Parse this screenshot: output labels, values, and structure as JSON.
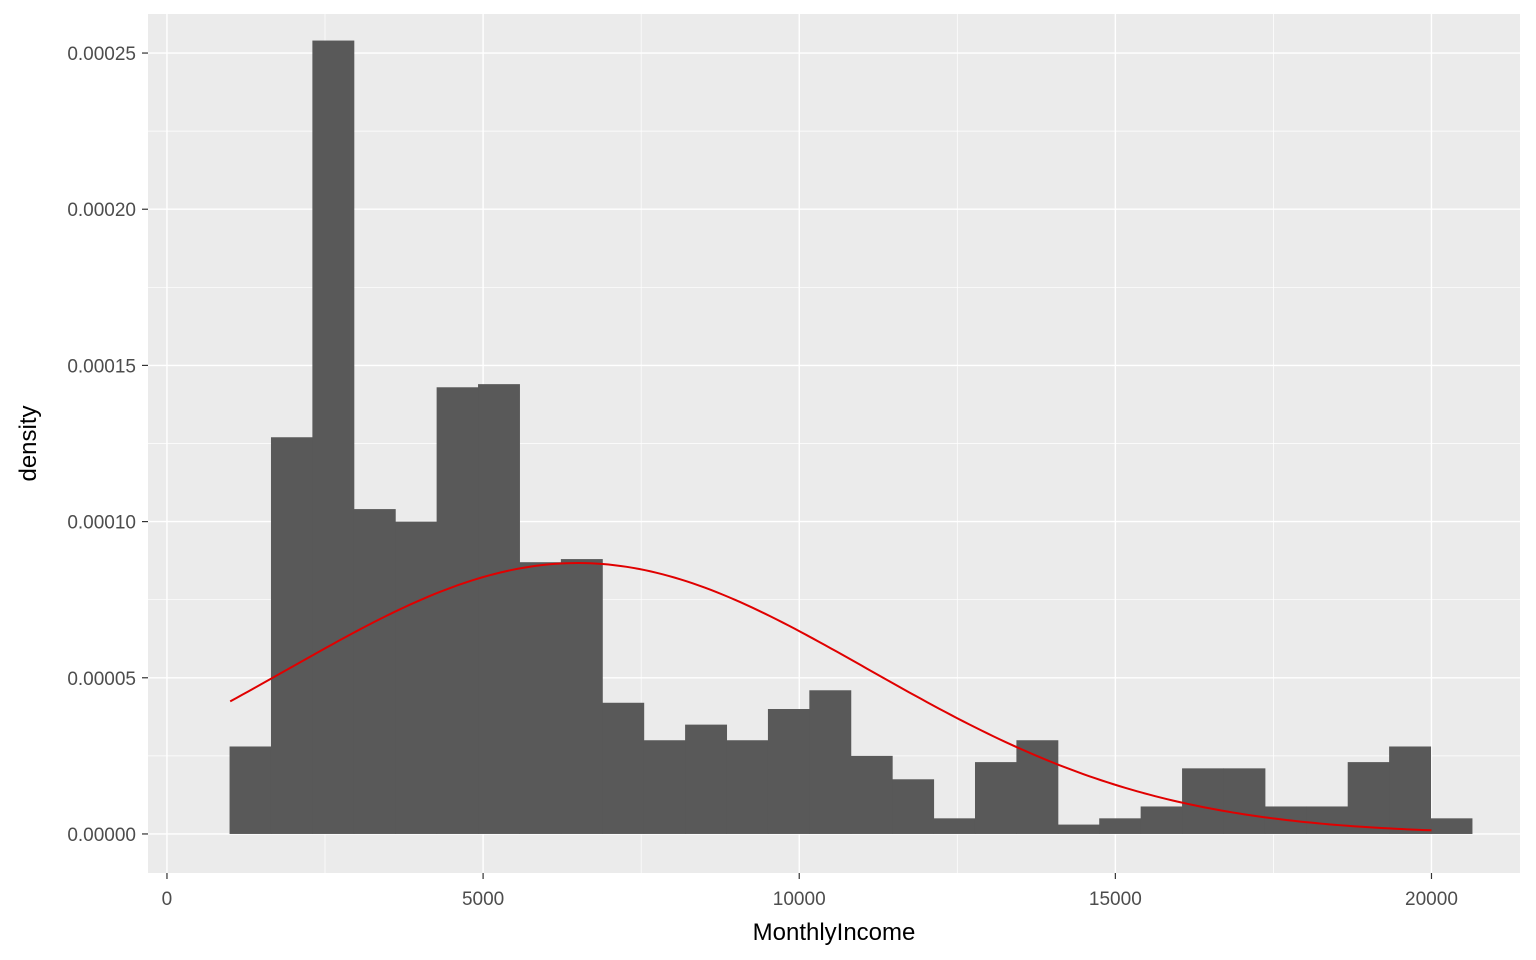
{
  "chart_data": {
    "type": "bar",
    "xlabel": "MonthlyIncome",
    "ylabel": "density",
    "xlim": [
      -300,
      21400
    ],
    "ylim": [
      -1.25e-05,
      0.0002625
    ],
    "x_ticks": [
      0,
      5000,
      10000,
      15000,
      20000
    ],
    "x_tick_labels": [
      "0",
      "5000",
      "10000",
      "15000",
      "20000"
    ],
    "y_ticks": [
      0,
      5e-05,
      0.0001,
      0.00015,
      0.0002,
      0.00025
    ],
    "y_tick_labels": [
      "0.00000",
      "0.00005",
      "0.00010",
      "0.00015",
      "0.00020",
      "0.00025"
    ],
    "grid": true,
    "colors": {
      "panel": "#EBEBEB",
      "bar": "#595959",
      "curve": "#E00000",
      "grid": "#FFFFFF"
    },
    "histogram": {
      "bin_width": 655,
      "bins": [
        {
          "x0": 990,
          "x1": 1645,
          "density": 2.8e-05
        },
        {
          "x0": 1645,
          "x1": 2300,
          "density": 0.000127
        },
        {
          "x0": 2300,
          "x1": 2955,
          "density": 0.000254
        },
        {
          "x0": 2955,
          "x1": 3610,
          "density": 0.000104
        },
        {
          "x0": 3610,
          "x1": 4265,
          "density": 0.0001
        },
        {
          "x0": 4265,
          "x1": 4920,
          "density": 0.000143
        },
        {
          "x0": 4920,
          "x1": 5575,
          "density": 0.000144
        },
        {
          "x0": 5575,
          "x1": 6230,
          "density": 8.7e-05
        },
        {
          "x0": 6230,
          "x1": 6885,
          "density": 8.8e-05
        },
        {
          "x0": 6885,
          "x1": 7540,
          "density": 4.2e-05
        },
        {
          "x0": 7540,
          "x1": 8195,
          "density": 3e-05
        },
        {
          "x0": 8195,
          "x1": 8850,
          "density": 3.5e-05
        },
        {
          "x0": 8850,
          "x1": 9505,
          "density": 3e-05
        },
        {
          "x0": 9505,
          "x1": 10160,
          "density": 4e-05
        },
        {
          "x0": 10160,
          "x1": 10815,
          "density": 4.6e-05
        },
        {
          "x0": 10815,
          "x1": 11470,
          "density": 2.5e-05
        },
        {
          "x0": 11470,
          "x1": 12125,
          "density": 1.75e-05
        },
        {
          "x0": 12125,
          "x1": 12780,
          "density": 5e-06
        },
        {
          "x0": 12780,
          "x1": 13435,
          "density": 2.3e-05
        },
        {
          "x0": 13435,
          "x1": 14090,
          "density": 3e-05
        },
        {
          "x0": 14090,
          "x1": 14745,
          "density": 3e-06
        },
        {
          "x0": 14745,
          "x1": 15400,
          "density": 5e-06
        },
        {
          "x0": 15400,
          "x1": 16055,
          "density": 8.8e-06
        },
        {
          "x0": 16055,
          "x1": 16710,
          "density": 2.1e-05
        },
        {
          "x0": 16710,
          "x1": 17365,
          "density": 2.1e-05
        },
        {
          "x0": 17365,
          "x1": 18020,
          "density": 8.8e-06
        },
        {
          "x0": 18020,
          "x1": 18675,
          "density": 8.8e-06
        },
        {
          "x0": 18675,
          "x1": 19330,
          "density": 2.3e-05
        },
        {
          "x0": 19330,
          "x1": 19985,
          "density": 2.8e-05
        },
        {
          "x0": 19985,
          "x1": 20640,
          "density": 5e-06
        }
      ]
    },
    "normal_curve": {
      "type": "line",
      "mean": 6500,
      "sd": 4600,
      "x_range": [
        1000,
        20000
      ],
      "color": "#E00000"
    }
  }
}
